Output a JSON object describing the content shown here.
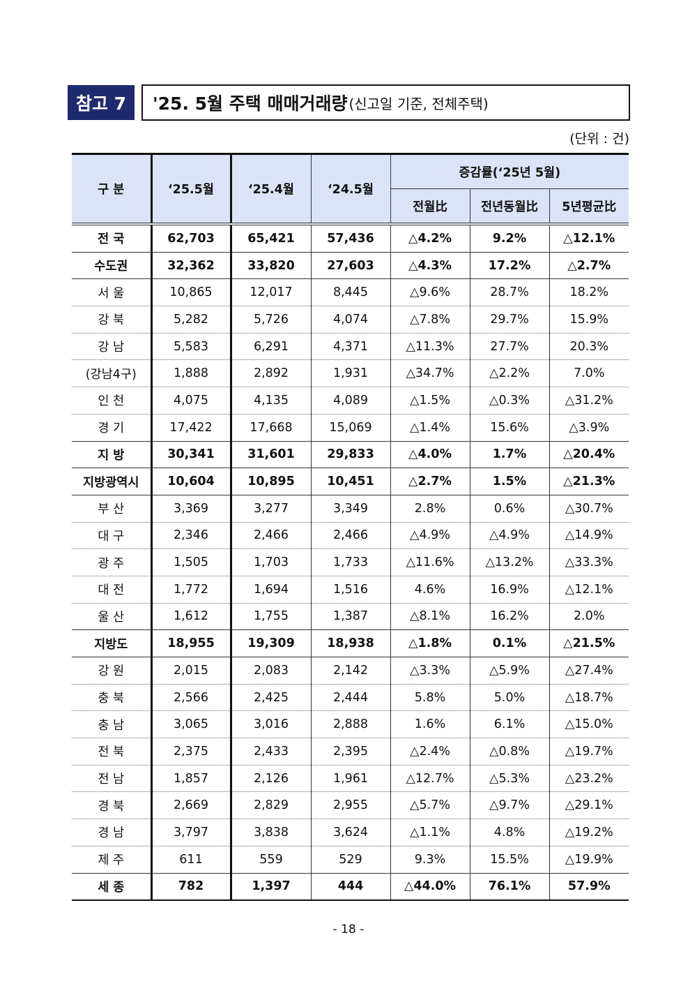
{
  "header": {
    "label": "참고 7",
    "title": "'25. 5월 주택 매매거래량",
    "title_sub": "(신고일 기준, 전체주택)",
    "unit": "(단위 : 건)"
  },
  "table": {
    "columns": [
      "구 분",
      "‘25.5월",
      "‘25.4월",
      "‘24.5월"
    ],
    "group_header": "증감률(‘25년 5월)",
    "subcolumns": [
      "전월比",
      "전년동월比",
      "5년평균比"
    ],
    "rows": [
      {
        "bold": true,
        "cells": [
          "전 국",
          "62,703",
          "65,421",
          "57,436",
          "△4.2%",
          "9.2%",
          "△12.1%"
        ]
      },
      {
        "bold": true,
        "cells": [
          "수도권",
          "32,362",
          "33,820",
          "27,603",
          "△4.3%",
          "17.2%",
          "△2.7%"
        ]
      },
      {
        "bold": false,
        "cells": [
          "서 울",
          "10,865",
          "12,017",
          "8,445",
          "△9.6%",
          "28.7%",
          "18.2%"
        ]
      },
      {
        "bold": false,
        "cells": [
          "강 북",
          "5,282",
          "5,726",
          "4,074",
          "△7.8%",
          "29.7%",
          "15.9%"
        ]
      },
      {
        "bold": false,
        "cells": [
          "강 남",
          "5,583",
          "6,291",
          "4,371",
          "△11.3%",
          "27.7%",
          "20.3%"
        ]
      },
      {
        "bold": false,
        "cells": [
          "(강남4구)",
          "1,888",
          "2,892",
          "1,931",
          "△34.7%",
          "△2.2%",
          "7.0%"
        ]
      },
      {
        "bold": false,
        "cells": [
          "인 천",
          "4,075",
          "4,135",
          "4,089",
          "△1.5%",
          "△0.3%",
          "△31.2%"
        ]
      },
      {
        "bold": false,
        "cells": [
          "경 기",
          "17,422",
          "17,668",
          "15,069",
          "△1.4%",
          "15.6%",
          "△3.9%"
        ]
      },
      {
        "bold": true,
        "cells": [
          "지 방",
          "30,341",
          "31,601",
          "29,833",
          "△4.0%",
          "1.7%",
          "△20.4%"
        ]
      },
      {
        "bold": true,
        "cells": [
          "지방광역시",
          "10,604",
          "10,895",
          "10,451",
          "△2.7%",
          "1.5%",
          "△21.3%"
        ]
      },
      {
        "bold": false,
        "cells": [
          "부 산",
          "3,369",
          "3,277",
          "3,349",
          "2.8%",
          "0.6%",
          "△30.7%"
        ]
      },
      {
        "bold": false,
        "cells": [
          "대 구",
          "2,346",
          "2,466",
          "2,466",
          "△4.9%",
          "△4.9%",
          "△14.9%"
        ]
      },
      {
        "bold": false,
        "cells": [
          "광 주",
          "1,505",
          "1,703",
          "1,733",
          "△11.6%",
          "△13.2%",
          "△33.3%"
        ]
      },
      {
        "bold": false,
        "cells": [
          "대 전",
          "1,772",
          "1,694",
          "1,516",
          "4.6%",
          "16.9%",
          "△12.1%"
        ]
      },
      {
        "bold": false,
        "cells": [
          "울 산",
          "1,612",
          "1,755",
          "1,387",
          "△8.1%",
          "16.2%",
          "2.0%"
        ]
      },
      {
        "bold": true,
        "cells": [
          "지방도",
          "18,955",
          "19,309",
          "18,938",
          "△1.8%",
          "0.1%",
          "△21.5%"
        ]
      },
      {
        "bold": false,
        "cells": [
          "강 원",
          "2,015",
          "2,083",
          "2,142",
          "△3.3%",
          "△5.9%",
          "△27.4%"
        ]
      },
      {
        "bold": false,
        "cells": [
          "충 북",
          "2,566",
          "2,425",
          "2,444",
          "5.8%",
          "5.0%",
          "△18.7%"
        ]
      },
      {
        "bold": false,
        "cells": [
          "충 남",
          "3,065",
          "3,016",
          "2,888",
          "1.6%",
          "6.1%",
          "△15.0%"
        ]
      },
      {
        "bold": false,
        "cells": [
          "전 북",
          "2,375",
          "2,433",
          "2,395",
          "△2.4%",
          "△0.8%",
          "△19.7%"
        ]
      },
      {
        "bold": false,
        "cells": [
          "전 남",
          "1,857",
          "2,126",
          "1,961",
          "△12.7%",
          "△5.3%",
          "△23.2%"
        ]
      },
      {
        "bold": false,
        "cells": [
          "경 북",
          "2,669",
          "2,829",
          "2,955",
          "△5.7%",
          "△9.7%",
          "△29.1%"
        ]
      },
      {
        "bold": false,
        "cells": [
          "경 남",
          "3,797",
          "3,838",
          "3,624",
          "△1.1%",
          "4.8%",
          "△19.2%"
        ]
      },
      {
        "bold": false,
        "cells": [
          "제 주",
          "611",
          "559",
          "529",
          "9.3%",
          "15.5%",
          "△19.9%"
        ]
      },
      {
        "bold": true,
        "cells": [
          "세 종",
          "782",
          "1,397",
          "444",
          "△44.0%",
          "76.1%",
          "57.9%"
        ]
      }
    ]
  },
  "footer": {
    "page": "- 18 -"
  }
}
